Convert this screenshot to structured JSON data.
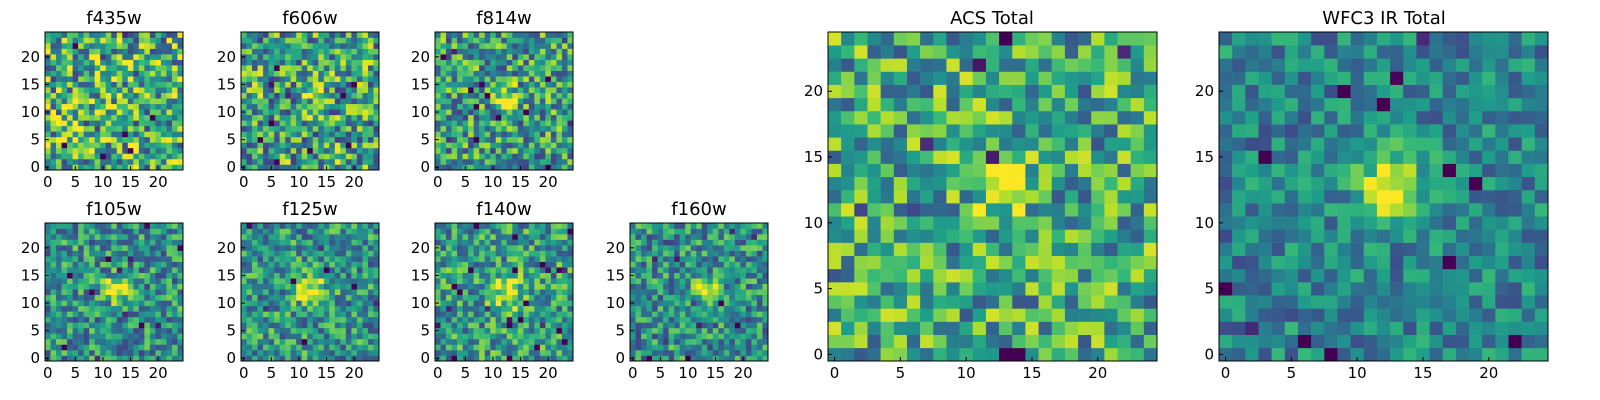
{
  "chart_data": [
    {
      "type": "heatmap",
      "title": "f435w",
      "grid": 25,
      "xlim": [
        0,
        24
      ],
      "ylim": [
        0,
        24
      ],
      "xticks": [
        "0",
        "5",
        "10",
        "15",
        "20"
      ],
      "yticks": [
        "0",
        "5",
        "10",
        "15",
        "20"
      ],
      "seed": 11,
      "noise": 0.42,
      "base": 0.62,
      "blob": {
        "x": 12.5,
        "y": 12,
        "amp": 0.05,
        "sigma": 1.3
      },
      "cmap": "viridis"
    },
    {
      "type": "heatmap",
      "title": "f606w",
      "grid": 25,
      "xlim": [
        0,
        24
      ],
      "ylim": [
        0,
        24
      ],
      "xticks": [
        "0",
        "5",
        "10",
        "15",
        "20"
      ],
      "yticks": [
        "0",
        "5",
        "10",
        "15",
        "20"
      ],
      "seed": 23,
      "noise": 0.4,
      "base": 0.58,
      "blob": {
        "x": 12.5,
        "y": 12.5,
        "amp": 0.35,
        "sigma": 1.2
      },
      "cmap": "viridis"
    },
    {
      "type": "heatmap",
      "title": "f814w",
      "grid": 25,
      "xlim": [
        0,
        24
      ],
      "ylim": [
        0,
        24
      ],
      "xticks": [
        "0",
        "5",
        "10",
        "15",
        "20"
      ],
      "yticks": [
        "0",
        "5",
        "10",
        "15",
        "20"
      ],
      "seed": 37,
      "noise": 0.36,
      "base": 0.55,
      "blob": {
        "x": 12.5,
        "y": 12.5,
        "amp": 0.5,
        "sigma": 1.5
      },
      "cmap": "viridis"
    },
    {
      "type": "heatmap",
      "title": "f105w",
      "grid": 25,
      "xlim": [
        0,
        24
      ],
      "ylim": [
        0,
        24
      ],
      "xticks": [
        "0",
        "5",
        "10",
        "15",
        "20"
      ],
      "yticks": [
        "0",
        "5",
        "10",
        "15",
        "20"
      ],
      "seed": 41,
      "noise": 0.3,
      "base": 0.5,
      "blob": {
        "x": 12.5,
        "y": 12.5,
        "amp": 0.6,
        "sigma": 1.5
      },
      "cmap": "viridis"
    },
    {
      "type": "heatmap",
      "title": "f125w",
      "grid": 25,
      "xlim": [
        0,
        24
      ],
      "ylim": [
        0,
        24
      ],
      "xticks": [
        "0",
        "5",
        "10",
        "15",
        "20"
      ],
      "yticks": [
        "0",
        "5",
        "10",
        "15",
        "20"
      ],
      "seed": 53,
      "noise": 0.3,
      "base": 0.52,
      "blob": {
        "x": 12.5,
        "y": 12,
        "amp": 0.55,
        "sigma": 1.9
      },
      "cmap": "viridis"
    },
    {
      "type": "heatmap",
      "title": "f140w",
      "grid": 25,
      "xlim": [
        0,
        24
      ],
      "ylim": [
        0,
        24
      ],
      "xticks": [
        "0",
        "5",
        "10",
        "15",
        "20"
      ],
      "yticks": [
        "0",
        "5",
        "10",
        "15",
        "20"
      ],
      "seed": 67,
      "noise": 0.3,
      "base": 0.55,
      "blob": {
        "x": 12.5,
        "y": 12,
        "amp": 0.45,
        "sigma": 2.0
      },
      "cmap": "viridis"
    },
    {
      "type": "heatmap",
      "title": "f160w",
      "grid": 25,
      "xlim": [
        0,
        24
      ],
      "ylim": [
        0,
        24
      ],
      "xticks": [
        "0",
        "5",
        "10",
        "15",
        "20"
      ],
      "yticks": [
        "0",
        "5",
        "10",
        "15",
        "20"
      ],
      "seed": 79,
      "noise": 0.3,
      "base": 0.5,
      "blob": {
        "x": 13,
        "y": 12.5,
        "amp": 0.5,
        "sigma": 1.6
      },
      "cmap": "viridis"
    },
    {
      "type": "heatmap",
      "title": "ACS Total",
      "grid": 25,
      "xlim": [
        0,
        24
      ],
      "ylim": [
        0,
        24
      ],
      "xticks": [
        "0",
        "5",
        "10",
        "15",
        "20"
      ],
      "yticks": [
        "0",
        "5",
        "10",
        "15",
        "20"
      ],
      "seed": 97,
      "noise": 0.34,
      "base": 0.6,
      "blob": {
        "x": 12.5,
        "y": 12.5,
        "amp": 0.45,
        "sigma": 1.3
      },
      "cmap": "viridis"
    },
    {
      "type": "heatmap",
      "title": "WFC3 IR Total",
      "grid": 25,
      "xlim": [
        0,
        24
      ],
      "ylim": [
        0,
        24
      ],
      "xticks": [
        "0",
        "5",
        "10",
        "15",
        "20"
      ],
      "yticks": [
        "0",
        "5",
        "10",
        "15",
        "20"
      ],
      "seed": 113,
      "noise": 0.22,
      "base": 0.45,
      "blob": {
        "x": 12.5,
        "y": 12.5,
        "amp": 0.65,
        "sigma": 1.8
      },
      "cmap": "viridis"
    }
  ]
}
